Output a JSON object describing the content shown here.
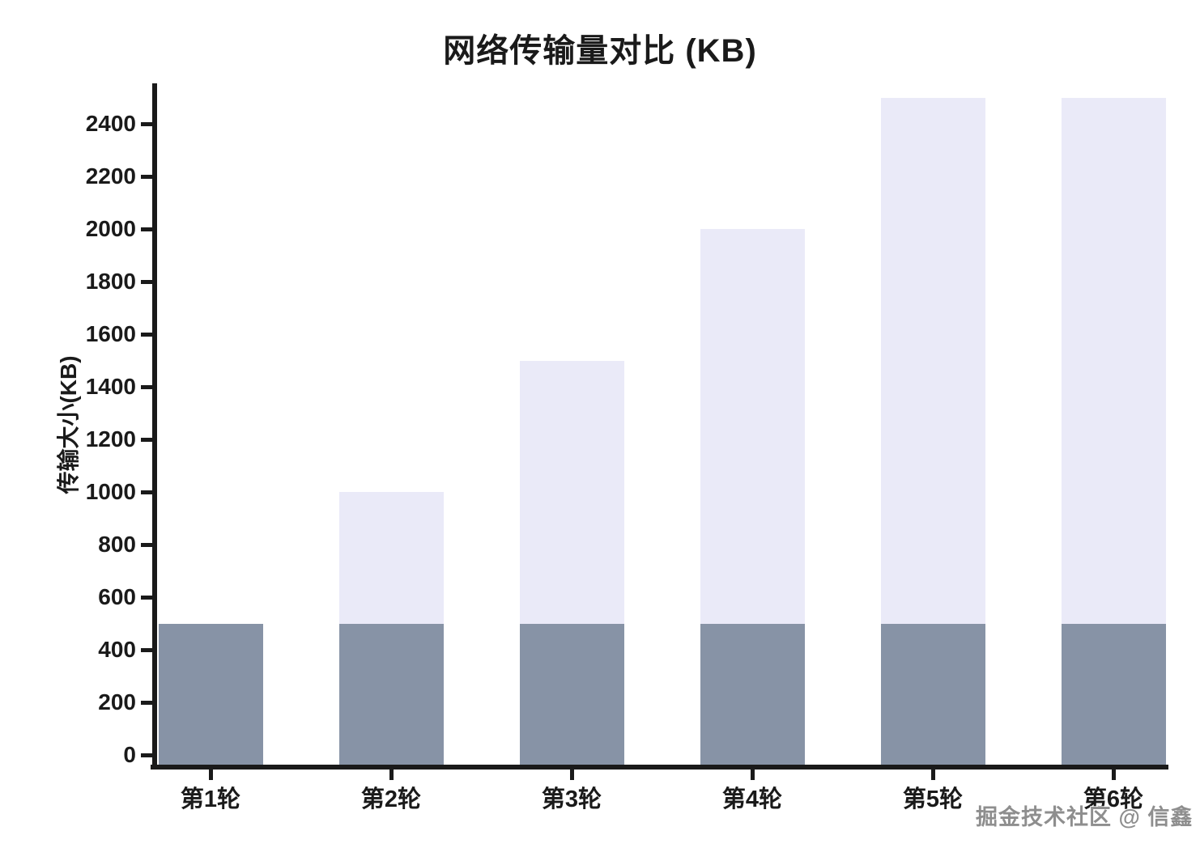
{
  "chart_data": {
    "type": "bar",
    "bar_style": "overlaid",
    "title": "网络传输量对比 (KB)",
    "xlabel": "",
    "ylabel": "传输大小(KB)",
    "categories": [
      "第1轮",
      "第2轮",
      "第3轮",
      "第4轮",
      "第5轮",
      "第6轮"
    ],
    "series": [
      {
        "name": "light-lavender-bar",
        "color": "#eaeaf8",
        "values": [
          500,
          1000,
          1500,
          2000,
          2500,
          2500
        ]
      },
      {
        "name": "dark-slate-bar",
        "color": "#8793a6",
        "values": [
          500,
          500,
          500,
          500,
          500,
          500
        ]
      }
    ],
    "ylim": [
      0,
      2500
    ],
    "yticks": [
      0,
      200,
      400,
      600,
      800,
      1000,
      1200,
      1400,
      1600,
      1800,
      2000,
      2200,
      2400
    ],
    "grid": false,
    "legend": "none"
  },
  "watermark": {
    "text": "掘金技术社区 @ 信鑫",
    "color": "#8e8e8e"
  },
  "colors": {
    "axis": "#1a1a1a",
    "text": "#1a1a1a",
    "background": "#ffffff"
  }
}
